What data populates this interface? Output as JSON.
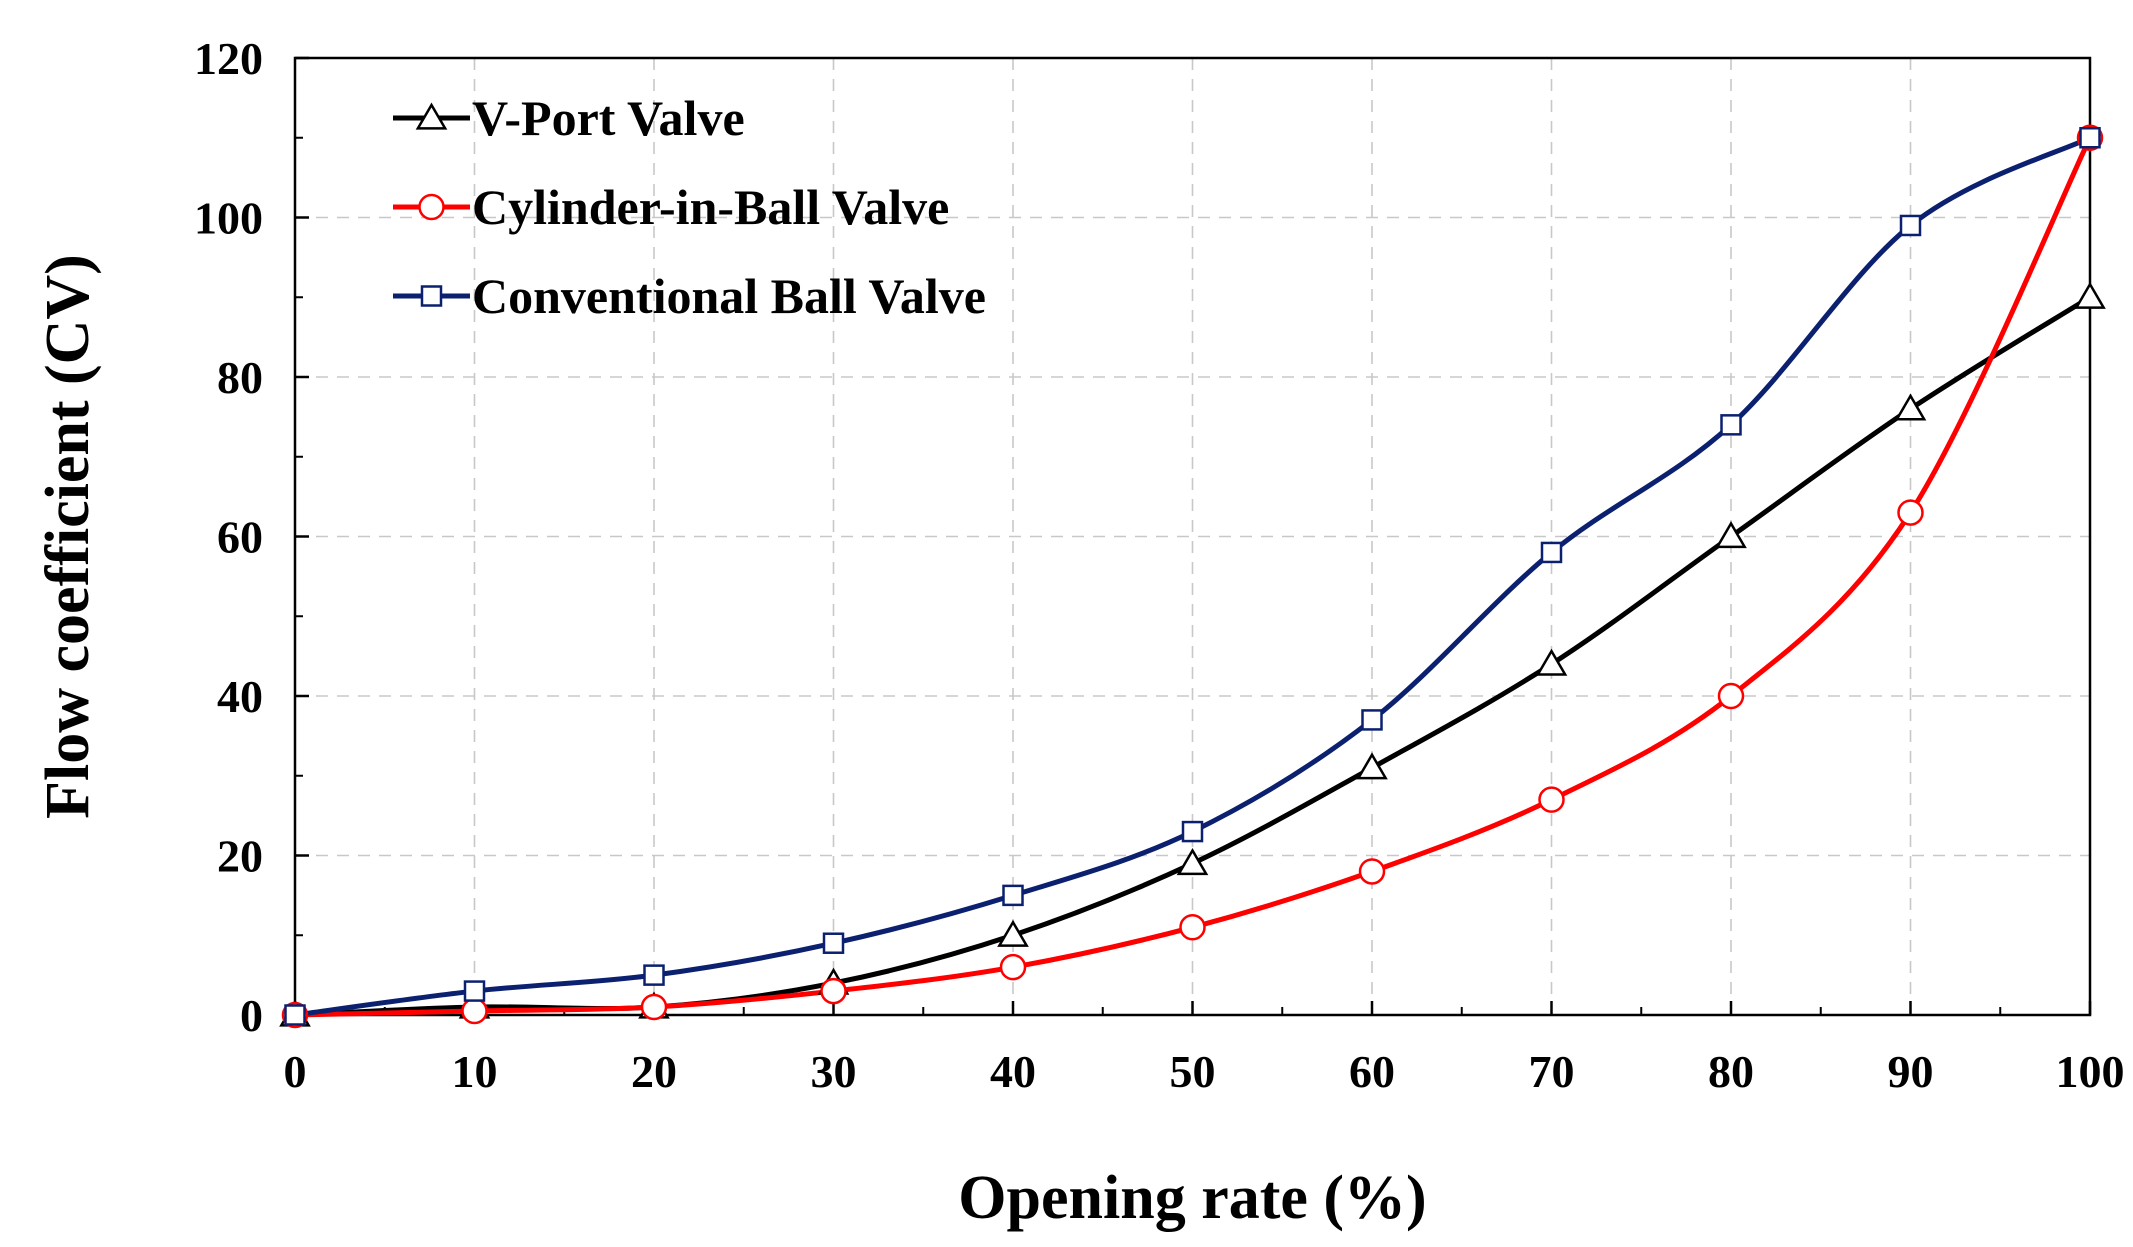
{
  "chart_data": {
    "type": "line",
    "title": "",
    "xlabel": "Opening rate (%)",
    "ylabel": "Flow coefficient (CV)",
    "xlim": [
      0,
      100
    ],
    "ylim": [
      0,
      120
    ],
    "x": [
      0,
      10,
      20,
      30,
      40,
      50,
      60,
      70,
      80,
      90,
      100
    ],
    "xticks": [
      "0",
      "10",
      "20",
      "30",
      "40",
      "50",
      "60",
      "70",
      "80",
      "90",
      "100"
    ],
    "yticks": [
      "0",
      "20",
      "40",
      "60",
      "80",
      "100",
      "120"
    ],
    "grid": true,
    "legend_position": "top-left",
    "series": [
      {
        "name": "V-Port Valve",
        "marker": "triangle",
        "color": "#000000",
        "values": [
          0,
          1,
          1,
          4,
          10,
          19,
          31,
          44,
          60,
          76,
          90
        ]
      },
      {
        "name": "Cylinder-in-Ball Valve",
        "marker": "circle",
        "color": "#ff0000",
        "values": [
          0,
          0.5,
          1,
          3,
          6,
          11,
          18,
          27,
          40,
          63,
          110
        ]
      },
      {
        "name": "Conventional Ball Valve",
        "marker": "square",
        "color": "#0b2170",
        "values": [
          0,
          3,
          5,
          9,
          15,
          23,
          37,
          58,
          74,
          99,
          110
        ]
      }
    ]
  }
}
